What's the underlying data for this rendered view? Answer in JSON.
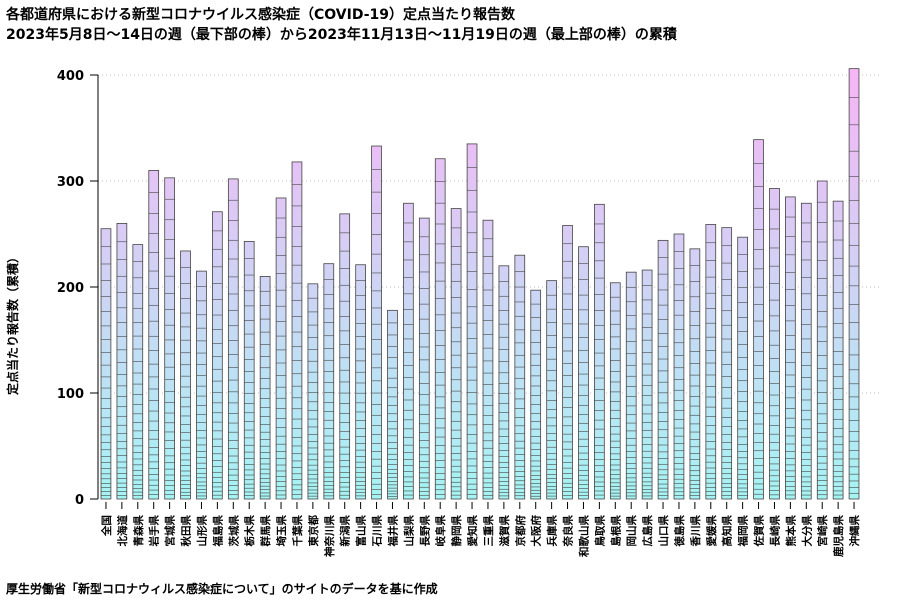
{
  "header": {
    "title_line1": "各都道府県における新型コロナウイルス感染症（COVID-19）定点当たり報告数",
    "title_line2": "2023年5月8日〜14日の週（最下部の棒）から2023年11月13日〜11月19日の週（最上部の棒）の累積"
  },
  "footer": {
    "source": "厚生労働省「新型コロナウィルス感染症について」のサイトのデータを基に作成"
  },
  "colors": {
    "bottom_gradient": "#a6f3f3",
    "top_gradient": "#f6b5f6",
    "segment_line": "#444444",
    "grid": "#bbbbbb"
  },
  "chart_data": {
    "type": "bar",
    "stacked": true,
    "weeks_per_bar": 28,
    "ylabel": "定点当たり報告数（累積）",
    "ylim": [
      0,
      400
    ],
    "yticks": [
      0,
      100,
      200,
      300,
      400
    ],
    "grid": true,
    "categories": [
      "全国",
      "北海道",
      "青森県",
      "岩手県",
      "宮城県",
      "秋田県",
      "山形県",
      "福島県",
      "茨城県",
      "栃木県",
      "群馬県",
      "埼玉県",
      "千葉県",
      "東京都",
      "神奈川県",
      "新潟県",
      "富山県",
      "石川県",
      "福井県",
      "山梨県",
      "長野県",
      "岐阜県",
      "静岡県",
      "愛知県",
      "三重県",
      "滋賀県",
      "京都府",
      "大阪府",
      "兵庫県",
      "奈良県",
      "和歌山県",
      "鳥取県",
      "島根県",
      "岡山県",
      "広島県",
      "山口県",
      "徳島県",
      "香川県",
      "愛媛県",
      "高知県",
      "福岡県",
      "佐賀県",
      "長崎県",
      "熊本県",
      "大分県",
      "宮崎県",
      "鹿児島県",
      "沖縄県"
    ],
    "values": [
      255,
      260,
      240,
      310,
      303,
      234,
      215,
      271,
      302,
      243,
      210,
      284,
      318,
      203,
      222,
      269,
      221,
      333,
      178,
      279,
      265,
      321,
      274,
      335,
      263,
      220,
      230,
      197,
      206,
      258,
      238,
      278,
      204,
      214,
      216,
      244,
      250,
      236,
      259,
      256,
      247,
      339,
      293,
      285,
      279,
      300,
      281,
      406
    ]
  }
}
